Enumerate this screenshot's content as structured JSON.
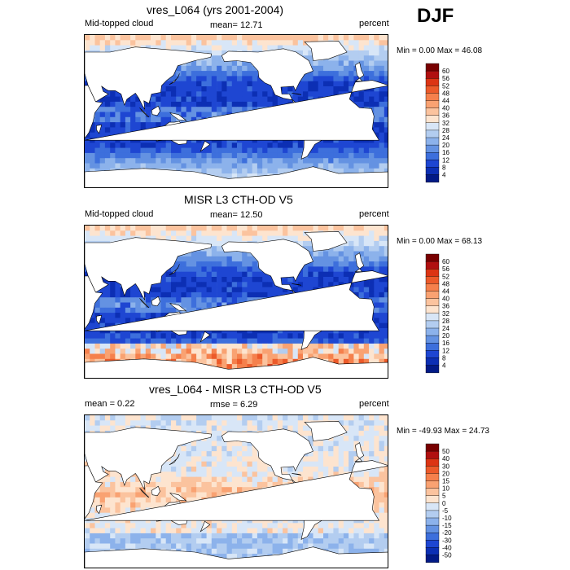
{
  "season": "DJF",
  "chart_data": [
    {
      "type": "heatmap",
      "title": "vres_L064 (yrs 2001-2004)",
      "left_label": "Mid-topped cloud",
      "center_label": "mean=  12.71",
      "right_label": "percent",
      "minmax": "Min =   0.00 Max =  46.08",
      "variable": "Mid-topped cloud",
      "mean": 12.71,
      "min": 0.0,
      "max": 46.08,
      "units": "percent",
      "colorbar": {
        "labels": [
          "60",
          "56",
          "52",
          "48",
          "44",
          "40",
          "36",
          "32",
          "28",
          "24",
          "20",
          "16",
          "12",
          "8",
          "4"
        ],
        "colors": [
          "#780000",
          "#b01010",
          "#dc3414",
          "#ec5a2a",
          "#f5804c",
          "#f9a272",
          "#fbc39e",
          "#fde4cf",
          "#d8e6f7",
          "#b3cdf0",
          "#8cb2eb",
          "#6492e2",
          "#3d6fdc",
          "#1e46d2",
          "#0c2fb4",
          "#021a86"
        ]
      }
    },
    {
      "type": "heatmap",
      "title": "MISR L3 CTH-OD V5",
      "left_label": "Mid-topped cloud",
      "center_label": "mean=  12.50",
      "right_label": "percent",
      "minmax": "Min =   0.00 Max =  68.13",
      "variable": "Mid-topped cloud",
      "mean": 12.5,
      "min": 0.0,
      "max": 68.13,
      "units": "percent",
      "colorbar": {
        "labels": [
          "60",
          "56",
          "52",
          "48",
          "44",
          "40",
          "36",
          "32",
          "28",
          "24",
          "20",
          "16",
          "12",
          "8",
          "4"
        ],
        "colors": [
          "#780000",
          "#b01010",
          "#dc3414",
          "#ec5a2a",
          "#f5804c",
          "#f9a272",
          "#fbc39e",
          "#fde4cf",
          "#d8e6f7",
          "#b3cdf0",
          "#8cb2eb",
          "#6492e2",
          "#3d6fdc",
          "#1e46d2",
          "#0c2fb4",
          "#021a86"
        ]
      }
    },
    {
      "type": "heatmap",
      "title": "vres_L064 - MISR L3 CTH-OD V5",
      "left_label": "mean =   0.22",
      "center_label": "rmse =   6.29",
      "right_label": "percent",
      "minmax": "Min = -49.93 Max =  24.73",
      "mean": 0.22,
      "rmse": 6.29,
      "min": -49.93,
      "max": 24.73,
      "units": "percent",
      "colorbar": {
        "labels": [
          "50",
          "40",
          "30",
          "20",
          "15",
          "10",
          "5",
          "0",
          "-5",
          "-10",
          "-15",
          "-20",
          "-30",
          "-40",
          "-50"
        ],
        "colors": [
          "#780000",
          "#b01010",
          "#dc3414",
          "#ec5a2a",
          "#f5804c",
          "#f9a272",
          "#fbc39e",
          "#fde4cf",
          "#d8e6f7",
          "#b3cdf0",
          "#8cb2eb",
          "#6492e2",
          "#3d6fdc",
          "#1e46d2",
          "#0c2fb4",
          "#021a86"
        ]
      }
    }
  ]
}
